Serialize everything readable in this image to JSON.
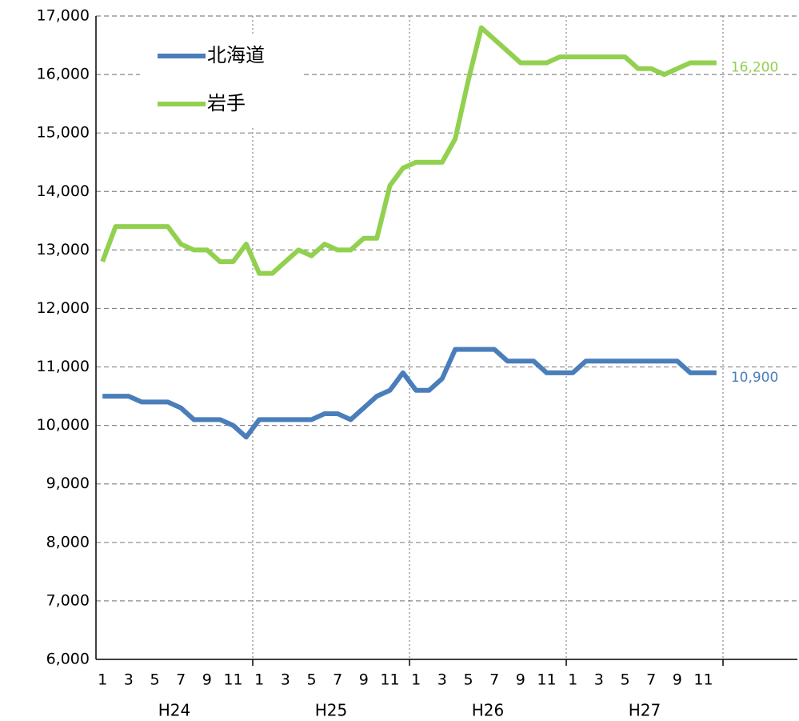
{
  "chart_data": {
    "type": "line",
    "categories": [
      "1",
      null,
      "3",
      null,
      "5",
      null,
      "7",
      null,
      "9",
      null,
      "11",
      null,
      "1",
      null,
      "3",
      null,
      "5",
      null,
      "7",
      null,
      "9",
      null,
      "11",
      null,
      "1",
      null,
      "3",
      null,
      "5",
      null,
      "7",
      null,
      "9",
      null,
      "11",
      null,
      "1",
      null,
      "3",
      null,
      "5",
      null,
      "7",
      null,
      "9",
      null,
      "11",
      null
    ],
    "year_labels": [
      "H24",
      "H25",
      "H26",
      "H27"
    ],
    "series": [
      {
        "name": "北海道",
        "color": "#4a7ebb",
        "values": [
          10500,
          10500,
          10500,
          10400,
          10400,
          10400,
          10300,
          10100,
          10100,
          10100,
          10000,
          9800,
          10100,
          10100,
          10100,
          10100,
          10100,
          10200,
          10200,
          10100,
          10300,
          10500,
          10600,
          10900,
          10600,
          10600,
          10800,
          11300,
          11300,
          11300,
          11300,
          11100,
          11100,
          11100,
          10900,
          10900,
          10900,
          11100,
          11100,
          11100,
          11100,
          11100,
          11100,
          11100,
          11100,
          10900,
          10900,
          10900
        ],
        "value_labels": [
          null,
          null,
          null,
          null,
          null,
          null,
          null,
          null,
          null,
          null,
          null,
          null,
          null,
          null,
          null,
          null,
          null,
          null,
          null,
          null,
          null,
          null,
          null,
          null,
          null,
          null,
          null,
          null,
          null,
          null,
          null,
          null,
          null,
          null,
          null,
          null,
          null,
          null,
          null,
          null,
          null,
          null,
          null,
          null,
          null,
          null,
          null,
          "10,900"
        ]
      },
      {
        "name": "岩手",
        "color": "#92d050",
        "values": [
          12800,
          13400,
          13400,
          13400,
          13400,
          13400,
          13100,
          13000,
          13000,
          12800,
          12800,
          13100,
          12600,
          12600,
          12800,
          13000,
          12900,
          13100,
          13000,
          13000,
          13200,
          13200,
          14100,
          14400,
          14500,
          14500,
          14500,
          14900,
          15900,
          16800,
          16600,
          16400,
          16200,
          16200,
          16200,
          16300,
          16300,
          16300,
          16300,
          16300,
          16300,
          16100,
          16100,
          16000,
          16100,
          16200,
          16200,
          16200
        ],
        "value_labels": [
          null,
          null,
          null,
          null,
          null,
          null,
          null,
          null,
          null,
          null,
          null,
          null,
          null,
          null,
          null,
          null,
          null,
          null,
          null,
          null,
          null,
          null,
          null,
          null,
          null,
          null,
          null,
          null,
          null,
          null,
          null,
          null,
          null,
          null,
          null,
          null,
          null,
          null,
          null,
          null,
          null,
          null,
          null,
          null,
          null,
          null,
          null,
          "16,200"
        ]
      }
    ],
    "ylim": [
      6000,
      17000
    ],
    "yticks": [
      {
        "value": 6000,
        "label": "6,000"
      },
      {
        "value": 7000,
        "label": "7,000"
      },
      {
        "value": 8000,
        "label": "8,000"
      },
      {
        "value": 9000,
        "label": "9,000"
      },
      {
        "value": 10000,
        "label": "10,000"
      },
      {
        "value": 11000,
        "label": "11,000"
      },
      {
        "value": 12000,
        "label": "12,000"
      },
      {
        "value": 13000,
        "label": "13,000"
      },
      {
        "value": 14000,
        "label": "14,000"
      },
      {
        "value": 15000,
        "label": "15,000"
      },
      {
        "value": 16000,
        "label": "16,000"
      },
      {
        "value": 17000,
        "label": "17,000"
      }
    ],
    "grid": true,
    "legend": "upper left"
  }
}
